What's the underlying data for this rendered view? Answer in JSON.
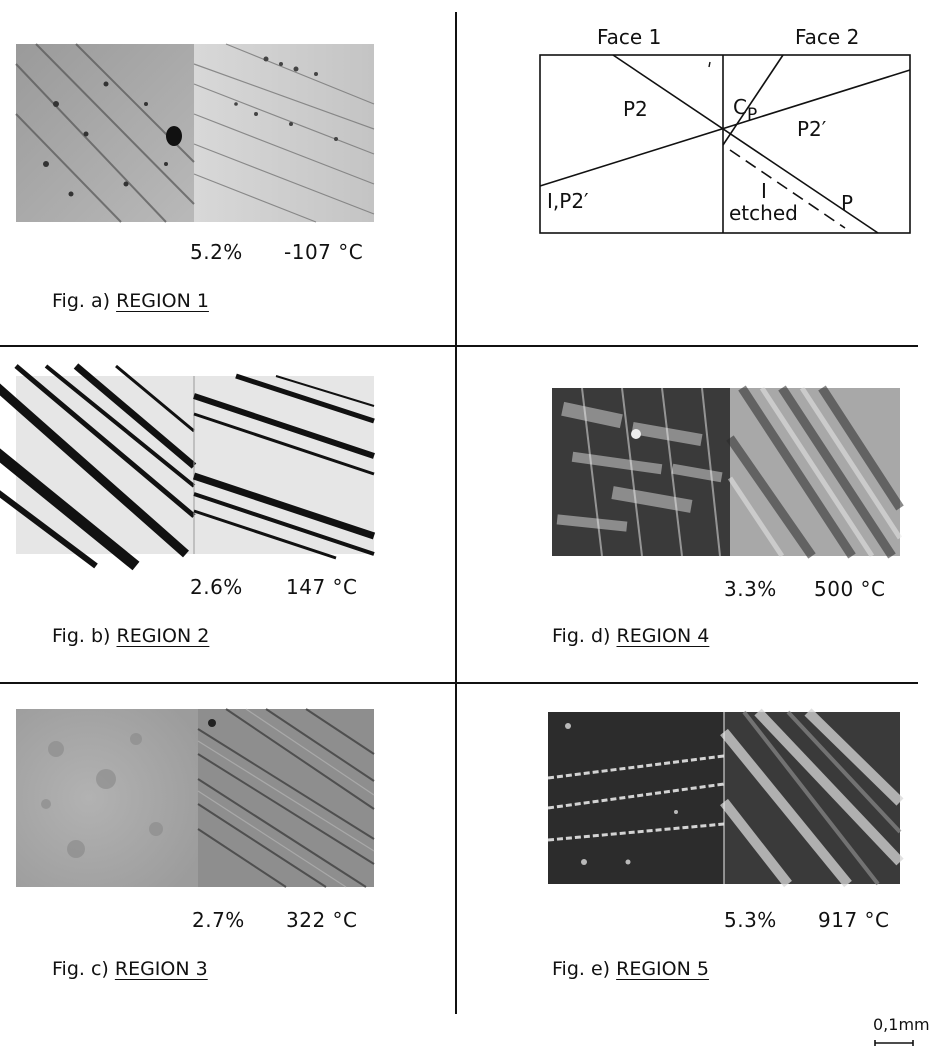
{
  "panels": [
    {
      "id": "a",
      "strain": "5.2%",
      "temperature": "-107 °C",
      "fig_label": "Fig. a)",
      "region": "REGION 1"
    },
    {
      "id": "b",
      "strain": "2.6%",
      "temperature": "147 °C",
      "fig_label": "Fig. b)",
      "region": "REGION 2"
    },
    {
      "id": "c",
      "strain": "2.7%",
      "temperature": "322 °C",
      "fig_label": "Fig. c)",
      "region": "REGION 3"
    },
    {
      "id": "d",
      "strain": "3.3%",
      "temperature": "500 °C",
      "fig_label": "Fig. d)",
      "region": "REGION 4"
    },
    {
      "id": "e",
      "strain": "5.3%",
      "temperature": "917 °C",
      "fig_label": "Fig. e)",
      "region": "REGION 5"
    }
  ],
  "diagram": {
    "face1": "Face 1",
    "face2": "Face 2",
    "labels": {
      "p2": "P2",
      "cp_main": "C",
      "cp_sub": "P",
      "p2_prime_right": "P2′",
      "i_p2_prime_left": "I,P2′",
      "i": "I",
      "etched": "etched",
      "p": "P"
    }
  },
  "scale_bar": {
    "label": "0,1mm"
  }
}
